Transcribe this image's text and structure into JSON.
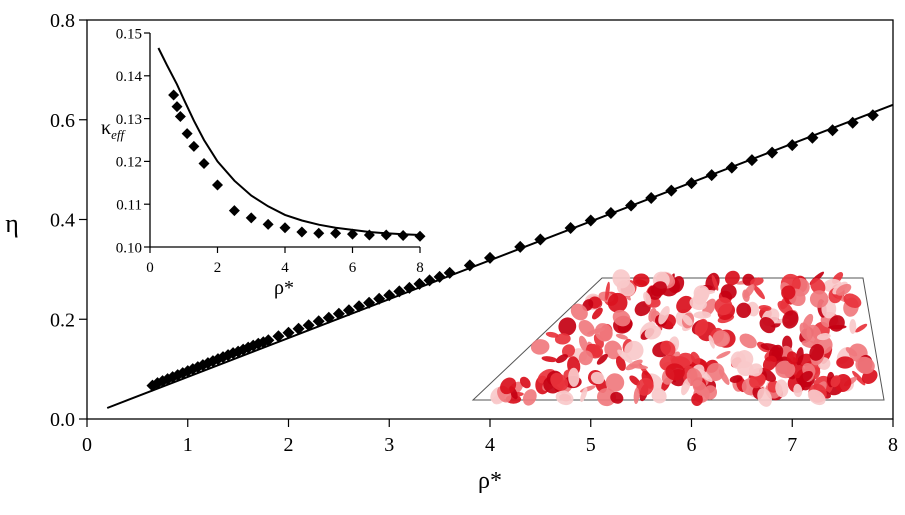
{
  "chart_data": [
    {
      "type": "scatter",
      "xlabel": "ρ*",
      "ylabel": "η",
      "xlim": [
        0,
        8
      ],
      "ylim": [
        0,
        0.8
      ],
      "xticks": [
        "0",
        "1",
        "2",
        "3",
        "4",
        "5",
        "6",
        "7",
        "8"
      ],
      "yticks": [
        "0.0",
        "0.2",
        "0.4",
        "0.6",
        "0.8"
      ],
      "grid": false,
      "series": [
        {
          "kind": "line",
          "color": "#000000",
          "x": [
            0.2,
            8.0
          ],
          "y": [
            0.022,
            0.63
          ]
        },
        {
          "kind": "diamond-markers",
          "color": "#000000",
          "x": [
            0.65,
            0.7,
            0.75,
            0.8,
            0.85,
            0.9,
            0.95,
            1.0,
            1.05,
            1.1,
            1.15,
            1.2,
            1.25,
            1.3,
            1.35,
            1.4,
            1.45,
            1.5,
            1.55,
            1.6,
            1.65,
            1.7,
            1.75,
            1.8,
            1.9,
            2.0,
            2.1,
            2.2,
            2.3,
            2.4,
            2.5,
            2.6,
            2.7,
            2.8,
            2.9,
            3.0,
            3.1,
            3.2,
            3.3,
            3.4,
            3.5,
            3.6,
            3.8,
            4.0,
            4.3,
            4.5,
            4.8,
            5.0,
            5.2,
            5.4,
            5.6,
            5.8,
            6.0,
            6.2,
            6.4,
            6.6,
            6.8,
            7.0,
            7.2,
            7.4,
            7.6,
            7.8
          ],
          "y": [
            0.067,
            0.072,
            0.076,
            0.08,
            0.084,
            0.088,
            0.092,
            0.096,
            0.1,
            0.104,
            0.108,
            0.112,
            0.116,
            0.12,
            0.124,
            0.128,
            0.132,
            0.135,
            0.139,
            0.143,
            0.147,
            0.151,
            0.154,
            0.158,
            0.166,
            0.173,
            0.181,
            0.188,
            0.196,
            0.203,
            0.211,
            0.218,
            0.226,
            0.233,
            0.241,
            0.248,
            0.256,
            0.263,
            0.271,
            0.278,
            0.285,
            0.293,
            0.308,
            0.323,
            0.345,
            0.36,
            0.383,
            0.398,
            0.413,
            0.428,
            0.443,
            0.458,
            0.473,
            0.489,
            0.504,
            0.519,
            0.534,
            0.549,
            0.564,
            0.579,
            0.594,
            0.609
          ]
        }
      ]
    },
    {
      "type": "scatter",
      "role": "inset",
      "xlabel": "ρ*",
      "ylabel": "κeff",
      "xlim": [
        0,
        8
      ],
      "ylim": [
        0.1,
        0.15
      ],
      "xticks": [
        "0",
        "2",
        "4",
        "6",
        "8"
      ],
      "yticks": [
        "0.10",
        "0.11",
        "0.12",
        "0.13",
        "0.14",
        "0.15"
      ],
      "grid": false,
      "series": [
        {
          "kind": "line",
          "color": "#000000",
          "x": [
            0.25,
            0.5,
            0.8,
            1.0,
            1.3,
            1.6,
            2.0,
            2.5,
            3.0,
            3.5,
            4.0,
            4.5,
            5.0,
            5.5,
            6.0,
            6.5,
            7.0,
            7.5,
            8.0
          ],
          "y": [
            0.1465,
            0.1425,
            0.138,
            0.1345,
            0.1295,
            0.125,
            0.12,
            0.1155,
            0.112,
            0.1095,
            0.1075,
            0.1062,
            0.1052,
            0.1045,
            0.104,
            0.1035,
            0.1032,
            0.103,
            0.1028
          ]
        },
        {
          "kind": "diamond-markers",
          "color": "#000000",
          "x": [
            0.7,
            0.8,
            0.9,
            1.1,
            1.3,
            1.6,
            2.0,
            2.5,
            3.0,
            3.5,
            4.0,
            4.5,
            5.0,
            5.5,
            6.0,
            6.5,
            7.0,
            7.5,
            8.0
          ],
          "y": [
            0.1355,
            0.1328,
            0.1305,
            0.1265,
            0.1235,
            0.1195,
            0.1145,
            0.1085,
            0.1068,
            0.1053,
            0.1045,
            0.1035,
            0.1032,
            0.1032,
            0.103,
            0.1028,
            0.1028,
            0.1027,
            0.1025
          ]
        }
      ]
    }
  ],
  "snapshot": {
    "kind": "particle-snapshot",
    "colors": [
      "#d90f1c",
      "#c40012",
      "#e8333c",
      "#f07a7e",
      "#f8c9ca"
    ]
  }
}
